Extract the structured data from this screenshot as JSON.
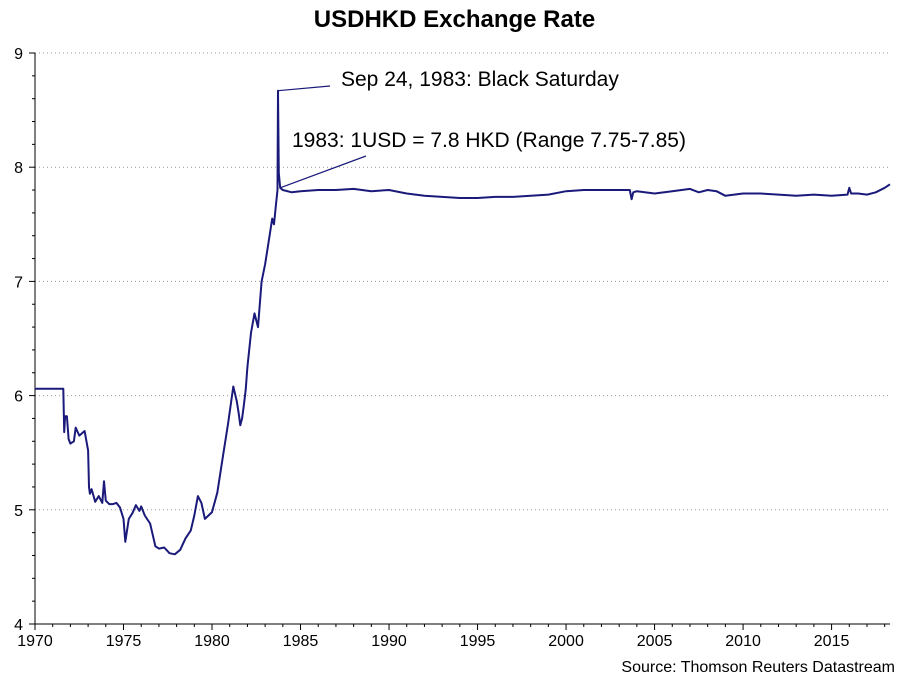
{
  "chart_data": {
    "type": "line",
    "title": "USDHKD Exchange Rate",
    "source": "Source: Thomson Reuters Datastream",
    "xlim": [
      1970,
      2018.3
    ],
    "ylim": [
      4,
      9
    ],
    "grid": {
      "horizontal": true,
      "vertical": false,
      "style": "dotted"
    },
    "x_ticks": [
      1970,
      1975,
      1980,
      1985,
      1990,
      1995,
      2000,
      2005,
      2010,
      2015
    ],
    "y_ticks": [
      4,
      5,
      6,
      7,
      8,
      9
    ],
    "series_color": "#1a1a7a",
    "annotations": [
      {
        "text": "Sep 24, 1983: Black Saturday",
        "x": 1983.73,
        "y": 8.67
      },
      {
        "text": "1983: 1USD = 7.8 HKD (Range 7.75-7.85)",
        "x": 1983.85,
        "y": 7.82
      }
    ],
    "series": [
      {
        "x": [
          1970.0,
          1971.6,
          1971.65,
          1971.7,
          1971.8,
          1971.9,
          1972.0,
          1972.2,
          1972.3,
          1972.5,
          1972.8,
          1973.0,
          1973.05,
          1973.1,
          1973.2,
          1973.4,
          1973.6,
          1973.8,
          1973.9,
          1974.0,
          1974.2,
          1974.4,
          1974.6,
          1974.8,
          1975.0,
          1975.1,
          1975.3,
          1975.5,
          1975.7,
          1975.9,
          1976.0,
          1976.2,
          1976.5,
          1976.8,
          1977.0,
          1977.3,
          1977.6,
          1977.9,
          1978.2,
          1978.5,
          1978.8,
          1979.0,
          1979.2,
          1979.4,
          1979.6,
          1979.8,
          1980.0,
          1980.3,
          1980.6,
          1980.9,
          1981.2,
          1981.4,
          1981.5,
          1981.6,
          1981.7,
          1981.8,
          1981.9,
          1982.0,
          1982.2,
          1982.4,
          1982.6,
          1982.8,
          1983.0,
          1983.2,
          1983.4,
          1983.5,
          1983.6,
          1983.7,
          1983.73,
          1983.77,
          1983.85,
          1984.0,
          1984.5,
          1985.0,
          1986.0,
          1987.0,
          1988.0,
          1989.0,
          1990.0,
          1991.0,
          1992.0,
          1993.0,
          1994.0,
          1995.0,
          1996.0,
          1997.0,
          1998.0,
          1999.0,
          2000.0,
          2001.0,
          2002.0,
          2003.0,
          2003.6,
          2003.7,
          2003.8,
          2004.0,
          2005.0,
          2006.0,
          2007.0,
          2007.5,
          2008.0,
          2008.5,
          2009.0,
          2010.0,
          2011.0,
          2012.0,
          2013.0,
          2014.0,
          2015.0,
          2015.9,
          2016.0,
          2016.1,
          2016.5,
          2017.0,
          2017.5,
          2018.0,
          2018.3
        ],
        "values": [
          6.06,
          6.06,
          5.68,
          5.82,
          5.82,
          5.62,
          5.58,
          5.6,
          5.72,
          5.65,
          5.69,
          5.52,
          5.2,
          5.14,
          5.18,
          5.07,
          5.12,
          5.06,
          5.25,
          5.08,
          5.05,
          5.05,
          5.06,
          5.02,
          4.92,
          4.72,
          4.92,
          4.97,
          5.04,
          4.99,
          5.03,
          4.95,
          4.88,
          4.68,
          4.66,
          4.67,
          4.62,
          4.61,
          4.65,
          4.75,
          4.82,
          4.95,
          5.12,
          5.06,
          4.92,
          4.95,
          4.98,
          5.15,
          5.45,
          5.75,
          6.08,
          5.95,
          5.85,
          5.74,
          5.8,
          5.92,
          6.05,
          6.25,
          6.55,
          6.72,
          6.6,
          7.0,
          7.15,
          7.35,
          7.55,
          7.5,
          7.65,
          7.8,
          8.67,
          7.95,
          7.82,
          7.8,
          7.78,
          7.79,
          7.8,
          7.8,
          7.81,
          7.79,
          7.8,
          7.77,
          7.75,
          7.74,
          7.73,
          7.73,
          7.74,
          7.74,
          7.75,
          7.76,
          7.79,
          7.8,
          7.8,
          7.8,
          7.8,
          7.72,
          7.78,
          7.79,
          7.77,
          7.79,
          7.81,
          7.78,
          7.8,
          7.79,
          7.75,
          7.77,
          7.77,
          7.76,
          7.75,
          7.76,
          7.75,
          7.76,
          7.82,
          7.77,
          7.77,
          7.76,
          7.78,
          7.82,
          7.85
        ]
      }
    ]
  }
}
